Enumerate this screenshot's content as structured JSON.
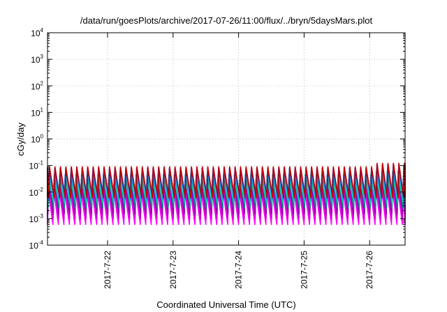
{
  "chart_data": {
    "type": "line",
    "title": "/data/run/goesPlots/archive/2017-07-26/11:00/flux/../bryn/5daysMars.plot",
    "xlabel": "Coordinated Universal Time (UTC)",
    "ylabel": "cGy/day",
    "yscale": "log",
    "ylim": [
      0.0001,
      10000
    ],
    "xlim": [
      "2017-07-21T02:00",
      "2017-07-26T13:00"
    ],
    "y_ticks": [
      {
        "base": "10",
        "exp": "-4"
      },
      {
        "base": "10",
        "exp": "-3"
      },
      {
        "base": "10",
        "exp": "-2"
      },
      {
        "base": "10",
        "exp": "-1"
      },
      {
        "base": "10",
        "exp": "0"
      },
      {
        "base": "10",
        "exp": "1"
      },
      {
        "base": "10",
        "exp": "2"
      },
      {
        "base": "10",
        "exp": "3"
      },
      {
        "base": "10",
        "exp": "4"
      }
    ],
    "x_ticks": [
      "2017-7-22",
      "2017-7-23",
      "2017-7-24",
      "2017-7-25",
      "2017-7-26"
    ],
    "grid": true,
    "pattern": {
      "period_hours": 2,
      "series_peaks_and_troughs": [
        {
          "color": "#ff00ff",
          "peak": 0.012,
          "trough": 0.0006
        },
        {
          "color": "#cc00cc",
          "peak": 0.02,
          "trough": 0.001
        },
        {
          "color": "#9900aa",
          "peak": 0.03,
          "trough": 0.0015
        },
        {
          "color": "#008b8b",
          "peak": 0.045,
          "trough": 0.0025
        },
        {
          "color": "#00cc99",
          "peak": 0.025,
          "trough": 0.004
        },
        {
          "color": "#00aaff",
          "peak": 0.06,
          "trough": 0.005
        },
        {
          "color": "#1c1cd0",
          "peak": 0.08,
          "trough": 0.007
        },
        {
          "color": "#c00000",
          "peak": 0.09,
          "trough": 0.006
        }
      ]
    }
  }
}
